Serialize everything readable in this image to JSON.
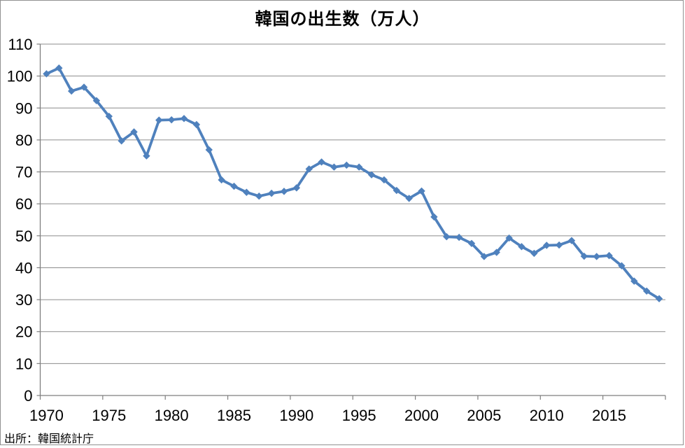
{
  "chart_data": {
    "type": "line",
    "title": "韓国の出生数（万人）",
    "source_note": "出所：韓国統計庁",
    "x": [
      1970,
      1971,
      1972,
      1973,
      1974,
      1975,
      1976,
      1977,
      1978,
      1979,
      1980,
      1981,
      1982,
      1983,
      1984,
      1985,
      1986,
      1987,
      1988,
      1989,
      1990,
      1991,
      1992,
      1993,
      1994,
      1995,
      1996,
      1997,
      1998,
      1999,
      2000,
      2001,
      2002,
      2003,
      2004,
      2005,
      2006,
      2007,
      2008,
      2009,
      2010,
      2011,
      2012,
      2013,
      2014,
      2015,
      2016,
      2017,
      2018,
      2019
    ],
    "values": [
      100.7,
      102.5,
      95.3,
      96.5,
      92.3,
      87.4,
      79.7,
      82.5,
      75.0,
      86.2,
      86.3,
      86.7,
      84.8,
      76.9,
      67.5,
      65.5,
      63.6,
      62.4,
      63.3,
      63.9,
      65.0,
      70.9,
      73.1,
      71.5,
      72.1,
      71.5,
      69.1,
      67.5,
      64.2,
      61.7,
      64.0,
      55.9,
      49.7,
      49.5,
      47.6,
      43.5,
      44.8,
      49.3,
      46.6,
      44.5,
      47.0,
      47.1,
      48.5,
      43.6,
      43.5,
      43.8,
      40.6,
      35.8,
      32.7,
      30.3
    ],
    "ylim": [
      0,
      110
    ],
    "ytick_step": 10,
    "ytick_labels": [
      "0",
      "10",
      "20",
      "30",
      "40",
      "50",
      "60",
      "70",
      "80",
      "90",
      "100",
      "110"
    ],
    "xtick_labels": [
      "1970",
      "1975",
      "1980",
      "1985",
      "1990",
      "1995",
      "2000",
      "2005",
      "2010",
      "2015"
    ],
    "xtick_label_interval_years": 5,
    "grid": true,
    "legend": false,
    "marker": "diamond",
    "colors": {
      "line": "#4F81BD",
      "grid": "#8C8C8C",
      "axis": "#7F7F7F",
      "text": "#000000",
      "frame": "#919191",
      "background": "#FFFFFF"
    }
  }
}
